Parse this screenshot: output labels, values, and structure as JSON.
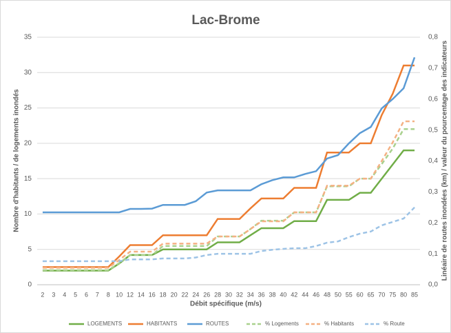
{
  "chart_data": {
    "type": "line",
    "title": "Lac-Brome",
    "x_label": "Débit spécifique (m/s)",
    "y_label": "Nombre d'habitants / de logements inondés",
    "y2_label": "Linéaire de routes inondées (km) / valeur du pourcentage des indicateurs",
    "categories": [
      2,
      3,
      4,
      5,
      6,
      7,
      8,
      10,
      12,
      14,
      16,
      18,
      20,
      22,
      24,
      26,
      28,
      30,
      32,
      34,
      36,
      38,
      40,
      42,
      44,
      46,
      48,
      50,
      55,
      60,
      65,
      70,
      75,
      80,
      85
    ],
    "ylim": [
      0,
      35
    ],
    "yticks": [
      0,
      5,
      10,
      15,
      20,
      25,
      30,
      35
    ],
    "y2lim": [
      0,
      0.8
    ],
    "y2ticks": [
      {
        "value": 0,
        "label": "0,0"
      },
      {
        "value": 0.1,
        "label": "0,1"
      },
      {
        "value": 0.2,
        "label": "0,2"
      },
      {
        "value": 0.3,
        "label": "0,3"
      },
      {
        "value": 0.4,
        "label": "0,4"
      },
      {
        "value": 0.5,
        "label": "0,5"
      },
      {
        "value": 0.6,
        "label": "0,6"
      },
      {
        "value": 0.7,
        "label": "0,7"
      },
      {
        "value": 0.8,
        "label": "0,8"
      }
    ],
    "grid": true,
    "legend": "bottom",
    "series": [
      {
        "name": "LOGEMENTS",
        "color": "#70ad47",
        "style": "solid",
        "values": [
          2,
          2,
          2,
          2,
          2,
          2,
          2,
          3,
          4.2,
          4.2,
          4.2,
          5,
          5,
          5,
          5,
          5,
          6,
          6,
          6,
          7,
          8,
          8,
          8,
          9,
          9,
          9,
          12,
          12,
          12,
          13,
          13,
          15,
          17,
          19,
          19
        ]
      },
      {
        "name": "HABITANTS",
        "color": "#ed7d31",
        "style": "solid",
        "values": [
          2.5,
          2.5,
          2.5,
          2.5,
          2.5,
          2.5,
          2.5,
          4,
          5.6,
          5.6,
          5.6,
          7,
          7,
          7,
          7,
          7,
          9.3,
          9.3,
          9.3,
          10.8,
          12.2,
          12.2,
          12.2,
          13.7,
          13.7,
          13.7,
          18.7,
          18.7,
          18.7,
          20,
          20,
          24,
          27,
          31,
          31
        ]
      },
      {
        "name": "ROUTES",
        "color": "#5b9bd5",
        "style": "solid",
        "axis": "y2",
        "values": [
          0.234,
          0.234,
          0.234,
          0.234,
          0.234,
          0.234,
          0.234,
          0.234,
          0.245,
          0.245,
          0.246,
          0.258,
          0.258,
          0.258,
          0.27,
          0.298,
          0.305,
          0.305,
          0.305,
          0.305,
          0.325,
          0.338,
          0.347,
          0.347,
          0.358,
          0.367,
          0.408,
          0.419,
          0.457,
          0.49,
          0.51,
          0.57,
          0.6,
          0.635,
          0.735
        ]
      },
      {
        "name": "% Logements",
        "color": "#a9d18e",
        "style": "dashed",
        "axis": "y2",
        "values": [
          0.047,
          0.047,
          0.047,
          0.047,
          0.047,
          0.047,
          0.047,
          0.07,
          0.096,
          0.096,
          0.096,
          0.125,
          0.125,
          0.125,
          0.125,
          0.125,
          0.156,
          0.156,
          0.156,
          0.18,
          0.207,
          0.207,
          0.207,
          0.234,
          0.234,
          0.234,
          0.318,
          0.318,
          0.318,
          0.343,
          0.343,
          0.39,
          0.44,
          0.503,
          0.503
        ]
      },
      {
        "name": "% Habitants",
        "color": "#f4b183",
        "style": "dashed",
        "axis": "y2",
        "values": [
          0.055,
          0.055,
          0.055,
          0.055,
          0.055,
          0.055,
          0.055,
          0.08,
          0.107,
          0.107,
          0.107,
          0.133,
          0.133,
          0.133,
          0.133,
          0.133,
          0.156,
          0.156,
          0.156,
          0.18,
          0.205,
          0.205,
          0.205,
          0.234,
          0.234,
          0.234,
          0.32,
          0.32,
          0.32,
          0.343,
          0.343,
          0.4,
          0.46,
          0.528,
          0.528
        ]
      },
      {
        "name": "% Route",
        "color": "#9dc3e6",
        "style": "dashed",
        "axis": "y2",
        "values": [
          0.076,
          0.076,
          0.076,
          0.076,
          0.076,
          0.076,
          0.076,
          0.076,
          0.082,
          0.082,
          0.082,
          0.085,
          0.085,
          0.085,
          0.088,
          0.096,
          0.1,
          0.1,
          0.1,
          0.1,
          0.109,
          0.113,
          0.116,
          0.118,
          0.118,
          0.125,
          0.136,
          0.14,
          0.154,
          0.165,
          0.172,
          0.192,
          0.203,
          0.214,
          0.25
        ]
      }
    ]
  }
}
